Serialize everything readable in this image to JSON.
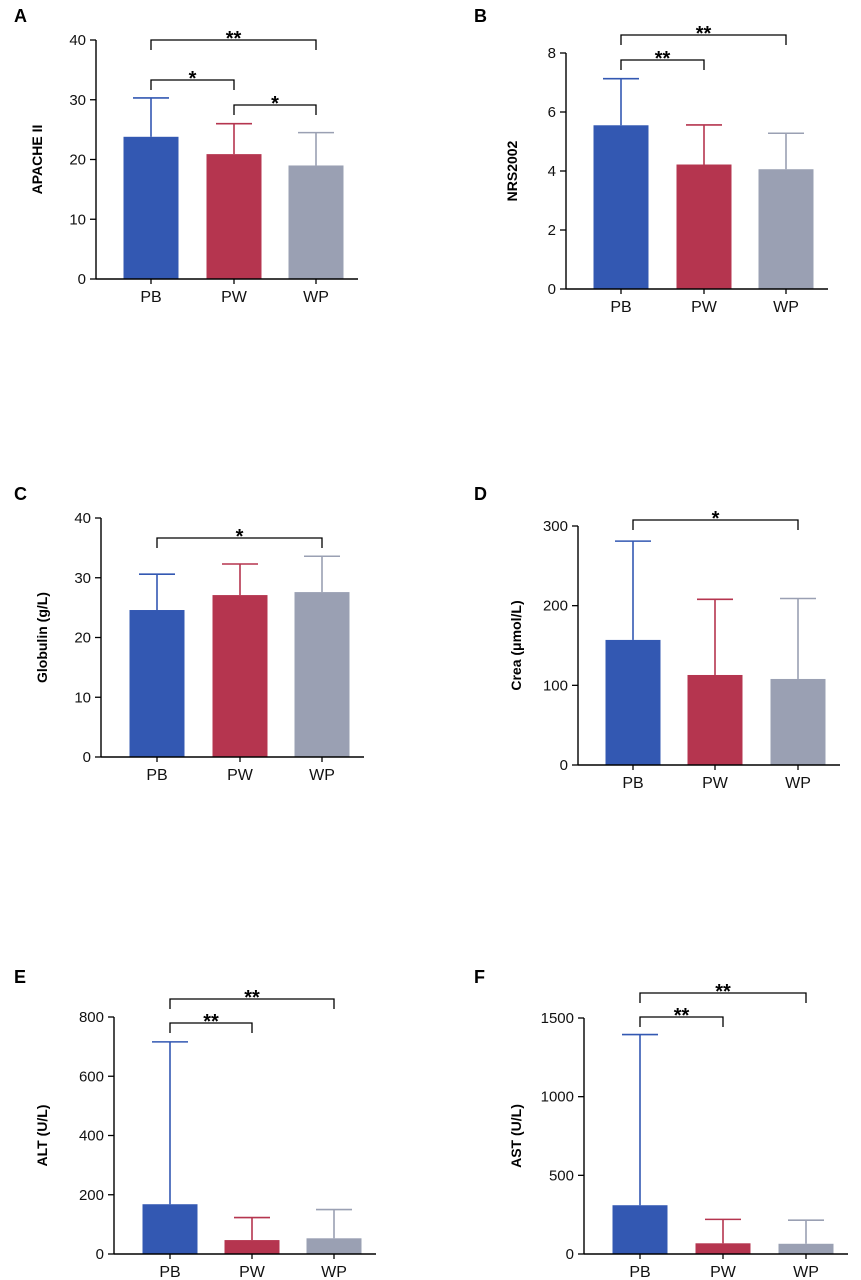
{
  "colors": {
    "PB": "#3358b2",
    "PW": "#b5354f",
    "WP": "#9aa0b3"
  },
  "chart_data": [
    {
      "panel": "A",
      "type": "bar",
      "ylabel": "APACHE II",
      "categories": [
        "PB",
        "PW",
        "WP"
      ],
      "values": [
        23.8,
        20.9,
        19.0
      ],
      "error_upper": [
        30.3,
        26.0,
        24.5
      ],
      "ylim": [
        0,
        40
      ],
      "yticks": [
        0,
        10,
        20,
        30,
        40
      ],
      "significance": [
        {
          "from": 0,
          "to": 1,
          "label": "*"
        },
        {
          "from": 1,
          "to": 2,
          "label": "*"
        },
        {
          "from": 0,
          "to": 2,
          "label": "**"
        }
      ]
    },
    {
      "panel": "B",
      "type": "bar",
      "ylabel": "NRS2002",
      "categories": [
        "PB",
        "PW",
        "WP"
      ],
      "values": [
        5.55,
        4.22,
        4.06
      ],
      "error_upper": [
        7.13,
        5.56,
        5.28
      ],
      "ylim": [
        0,
        8
      ],
      "yticks": [
        0,
        2,
        4,
        6,
        8
      ],
      "significance": [
        {
          "from": 0,
          "to": 1,
          "label": "**"
        },
        {
          "from": 0,
          "to": 2,
          "label": "**"
        }
      ]
    },
    {
      "panel": "C",
      "type": "bar",
      "ylabel": "Globulin (g/L)",
      "categories": [
        "PB",
        "PW",
        "WP"
      ],
      "values": [
        24.6,
        27.1,
        27.6
      ],
      "error_upper": [
        30.6,
        32.3,
        33.6
      ],
      "ylim": [
        0,
        40
      ],
      "yticks": [
        0,
        10,
        20,
        30,
        40
      ],
      "significance": [
        {
          "from": 0,
          "to": 2,
          "label": "*"
        }
      ]
    },
    {
      "panel": "D",
      "type": "bar",
      "ylabel": "Crea (μmol/L)",
      "categories": [
        "PB",
        "PW",
        "WP"
      ],
      "values": [
        157,
        113,
        108
      ],
      "error_upper": [
        281,
        208,
        209
      ],
      "ylim": [
        0,
        300
      ],
      "yticks": [
        0,
        100,
        200,
        300
      ],
      "significance": [
        {
          "from": 0,
          "to": 2,
          "label": "*"
        }
      ]
    },
    {
      "panel": "E",
      "type": "bar",
      "ylabel": "ALT (U/L)",
      "categories": [
        "PB",
        "PW",
        "WP"
      ],
      "values": [
        168,
        47,
        53
      ],
      "error_upper": [
        716,
        123,
        150
      ],
      "ylim": [
        0,
        800
      ],
      "yticks": [
        0,
        200,
        400,
        600,
        800
      ],
      "significance": [
        {
          "from": 0,
          "to": 1,
          "label": "**"
        },
        {
          "from": 0,
          "to": 2,
          "label": "**"
        }
      ]
    },
    {
      "panel": "F",
      "type": "bar",
      "ylabel": "AST (U/L)",
      "categories": [
        "PB",
        "PW",
        "WP"
      ],
      "values": [
        310,
        68,
        65
      ],
      "error_upper": [
        1395,
        220,
        215
      ],
      "ylim": [
        0,
        1500
      ],
      "yticks": [
        0,
        500,
        1000,
        1500
      ],
      "significance": [
        {
          "from": 0,
          "to": 1,
          "label": "**"
        },
        {
          "from": 0,
          "to": 2,
          "label": "**"
        }
      ]
    }
  ]
}
